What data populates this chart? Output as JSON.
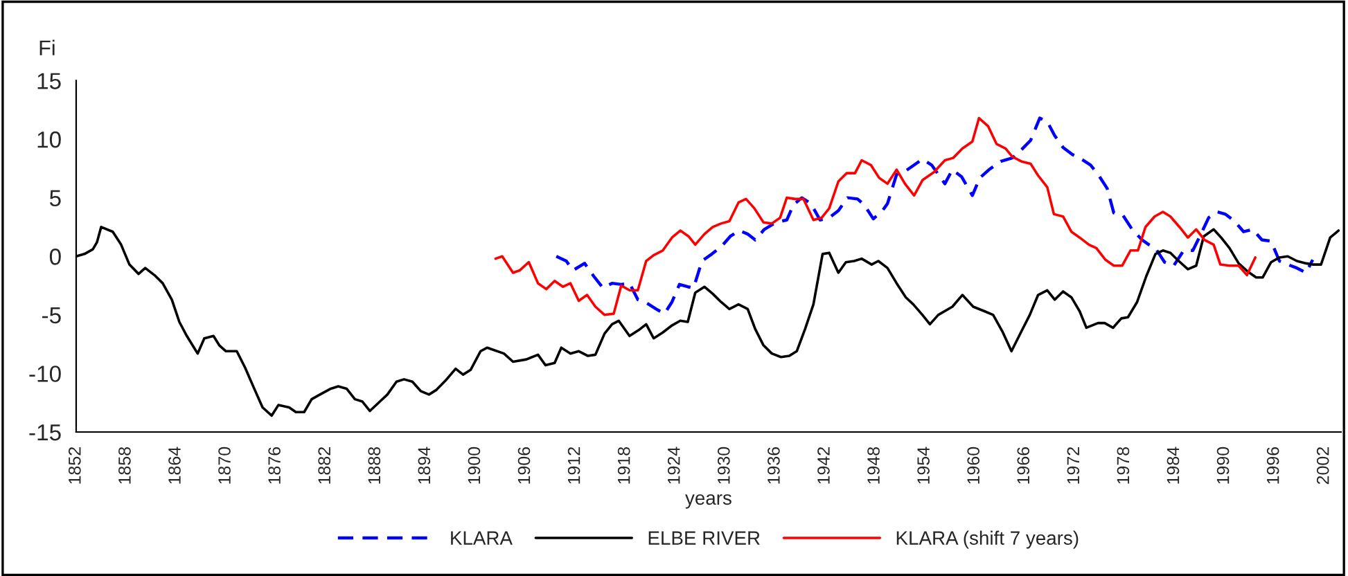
{
  "chart_data": {
    "type": "line",
    "xlabel": "years",
    "ylabel": "Fi",
    "xlim": [
      1852,
      2004
    ],
    "xticks": [
      1852,
      1858,
      1864,
      1870,
      1876,
      1882,
      1888,
      1894,
      1900,
      1906,
      1912,
      1918,
      1924,
      1930,
      1936,
      1942,
      1948,
      1954,
      1960,
      1966,
      1972,
      1978,
      1984,
      1990,
      1996,
      2002
    ],
    "ylim": [
      -15,
      15
    ],
    "yticks": [
      -15,
      -10,
      -5,
      0,
      5,
      10,
      15
    ],
    "grid": false,
    "legend": "bottom",
    "marker": "none",
    "series": [
      {
        "name": "KLARA",
        "color": "#0000ff",
        "line_style": "dashed",
        "x": [
          1909.7,
          1910.9,
          1911.7,
          1913.1,
          1914.2,
          1915.3,
          1916.4,
          1917.5,
          1918.5,
          1919.5,
          1920.6,
          1921.7,
          1922.7,
          1923.6,
          1924.5,
          1925.5,
          1926.2,
          1927.2,
          1928.4,
          1929.5,
          1930.6,
          1931.7,
          1932.7,
          1933.6,
          1934.7,
          1936.1,
          1937.4,
          1938.2,
          1939.2,
          1940.3,
          1941.4,
          1942.5,
          1943.6,
          1944.7,
          1945.9,
          1946.7,
          1947.8,
          1948.9,
          1949.5,
          1950.6,
          1951.7,
          1953.7,
          1954.8,
          1956.4,
          1957.3,
          1958.4,
          1959.7,
          1960.6,
          1961.7,
          1963.1,
          1964.5,
          1965.6,
          1966.7,
          1967.8,
          1968.7,
          1969.6,
          1970.6,
          1971.7,
          1972.8,
          1973.9,
          1974.8,
          1975.9,
          1976.7,
          1977.8,
          1978.9,
          1980.1,
          1980.9,
          1981.7,
          1982.8,
          1983.9,
          1985.1,
          1986.2,
          1987.3,
          1988.1,
          1989.1,
          1990.1,
          1991.2,
          1992.3,
          1993.4,
          1994.5,
          1995.6,
          1996.6,
          1997.6,
          1998.7,
          1999.8,
          2000.6
        ],
        "values": [
          0,
          -0.4,
          -1.2,
          -0.6,
          -1.7,
          -2.7,
          -2.3,
          -2.4,
          -2.3,
          -3.7,
          -4.0,
          -4.5,
          -4.9,
          -3.9,
          -2.4,
          -2.6,
          -2.7,
          -0.4,
          0.2,
          0.8,
          1.7,
          2.2,
          1.9,
          1.4,
          2.3,
          2.9,
          3.1,
          4.4,
          5.0,
          4.5,
          3.1,
          3.3,
          3.9,
          5.0,
          4.9,
          4.4,
          3.2,
          3.9,
          4.5,
          7.0,
          7.3,
          8.3,
          7.8,
          6.2,
          7.4,
          6.8,
          5.2,
          6.7,
          7.4,
          8.1,
          8.4,
          9.1,
          9.9,
          11.8,
          11.5,
          10.3,
          9.3,
          8.7,
          8.3,
          7.8,
          7.0,
          5.8,
          3.7,
          3.5,
          2.3,
          1.4,
          1.0,
          0.7,
          -0.5,
          -0.8,
          0.5,
          0.5,
          2.1,
          3.3,
          3.8,
          3.6,
          3.0,
          2.1,
          2.3,
          1.4,
          1.3,
          -0.4,
          -0.7,
          -1.0,
          -1.4,
          -0.3
        ]
      },
      {
        "name": "ELBE RIVER",
        "color": "#000000",
        "line_style": "solid",
        "x": [
          1852,
          1853,
          1854,
          1854.5,
          1855,
          1856.4,
          1857.4,
          1858.4,
          1859.5,
          1860.3,
          1861.4,
          1862.4,
          1863.5,
          1864.4,
          1865.3,
          1866.6,
          1867.4,
          1868.5,
          1869.2,
          1870,
          1871.3,
          1872.3,
          1873.4,
          1874.4,
          1875.5,
          1876.3,
          1877.6,
          1878.4,
          1879.4,
          1880.3,
          1881.3,
          1882.6,
          1883.5,
          1884.5,
          1885.5,
          1886.4,
          1887.3,
          1888.5,
          1889.4,
          1890.5,
          1891.4,
          1892.4,
          1893.4,
          1894.4,
          1895.3,
          1896.4,
          1897.6,
          1898.5,
          1899.4,
          1900.6,
          1901.4,
          1903.4,
          1904.5,
          1906.1,
          1907.5,
          1908.4,
          1909.5,
          1910.3,
          1911.4,
          1912.4,
          1913.5,
          1914.4,
          1915.5,
          1916.4,
          1917.2,
          1918.5,
          1919.6,
          1920.5,
          1921.4,
          1922.5,
          1923.6,
          1924.6,
          1925.5,
          1926.4,
          1927.5,
          1928.5,
          1929.5,
          1930.5,
          1931.6,
          1932.7,
          1933.6,
          1934.6,
          1935.6,
          1936.7,
          1937.7,
          1938.6,
          1939.6,
          1940.6,
          1941.7,
          1942.5,
          1943.6,
          1944.5,
          1945.5,
          1946.4,
          1947.6,
          1948.4,
          1949.5,
          1950.6,
          1951.7,
          1952.6,
          1953.7,
          1954.6,
          1955.6,
          1957.3,
          1958.5,
          1959.8,
          1961.2,
          1962.2,
          1963.3,
          1964.4,
          1965.6,
          1966.6,
          1967.6,
          1968.7,
          1969.6,
          1970.6,
          1971.6,
          1972.6,
          1973.4,
          1974.8,
          1975.6,
          1976.6,
          1977.6,
          1978.4,
          1979.5,
          1980.6,
          1981.7,
          1982.6,
          1983.5,
          1984.5,
          1985.6,
          1986.6,
          1987.5,
          1988.7,
          1989.6,
          1990.6,
          1991.7,
          1992.8,
          1993.8,
          1994.6,
          1995.6,
          1996.6,
          1997.6,
          1998.7,
          1999.8,
          2000.6,
          2001.6,
          2002.7,
          2003.7
        ],
        "values": [
          0,
          0.2,
          0.6,
          1.2,
          2.5,
          2.1,
          1.0,
          -0.7,
          -1.5,
          -1.0,
          -1.6,
          -2.3,
          -3.7,
          -5.6,
          -6.8,
          -8.3,
          -7.0,
          -6.8,
          -7.6,
          -8.1,
          -8.1,
          -9.5,
          -11.3,
          -12.9,
          -13.6,
          -12.7,
          -12.9,
          -13.3,
          -13.3,
          -12.2,
          -11.8,
          -11.3,
          -11.1,
          -11.3,
          -12.2,
          -12.4,
          -13.2,
          -12.4,
          -11.8,
          -10.7,
          -10.5,
          -10.7,
          -11.5,
          -11.8,
          -11.4,
          -10.6,
          -9.6,
          -10.1,
          -9.7,
          -8.1,
          -7.8,
          -8.3,
          -9.0,
          -8.8,
          -8.4,
          -9.3,
          -9.1,
          -7.8,
          -8.3,
          -8.1,
          -8.5,
          -8.4,
          -6.6,
          -5.8,
          -5.5,
          -6.8,
          -6.3,
          -5.8,
          -7.0,
          -6.5,
          -5.9,
          -5.5,
          -5.6,
          -3.1,
          -2.6,
          -3.2,
          -3.9,
          -4.5,
          -4.1,
          -4.5,
          -6.2,
          -7.6,
          -8.3,
          -8.6,
          -8.5,
          -8.1,
          -6.2,
          -4.1,
          0.2,
          0.3,
          -1.4,
          -0.5,
          -0.4,
          -0.2,
          -0.7,
          -0.4,
          -1.0,
          -2.3,
          -3.5,
          -4.1,
          -5.0,
          -5.8,
          -5.0,
          -4.3,
          -3.3,
          -4.3,
          -4.7,
          -5.0,
          -6.4,
          -8.1,
          -6.4,
          -5.0,
          -3.3,
          -2.9,
          -3.7,
          -3.0,
          -3.5,
          -4.7,
          -6.1,
          -5.7,
          -5.7,
          -6.1,
          -5.3,
          -5.2,
          -3.9,
          -1.7,
          0.2,
          0.5,
          0.3,
          -0.4,
          -1.1,
          -0.8,
          1.7,
          2.3,
          1.6,
          0.7,
          -0.6,
          -1.3,
          -1.8,
          -1.8,
          -0.5,
          -0.1,
          0,
          -0.4,
          -0.6,
          -0.7,
          -0.7,
          1.6,
          2.2
        ]
      },
      {
        "name": "KLARA (shift 7 years)",
        "color": "#ff0000",
        "line_style": "solid",
        "x": [
          1902.4,
          1903.2,
          1904.5,
          1905.3,
          1906.4,
          1907.5,
          1908.5,
          1909.5,
          1910.5,
          1911.4,
          1912.4,
          1913.4,
          1914.4,
          1915.5,
          1916.6,
          1917.5,
          1918.5,
          1919.5,
          1920.5,
          1921.4,
          1922.5,
          1923.6,
          1924.6,
          1925.6,
          1926.4,
          1927.5,
          1928.5,
          1929.5,
          1930.5,
          1931.6,
          1932.5,
          1933.5,
          1934.6,
          1935.6,
          1936.6,
          1937.4,
          1938.4,
          1939.4,
          1940.6,
          1941.6,
          1942.5,
          1943.6,
          1944.6,
          1945.6,
          1946.4,
          1947.5,
          1948.5,
          1949.5,
          1950.6,
          1951.6,
          1952.7,
          1953.7,
          1955.1,
          1956.4,
          1957.4,
          1958.5,
          1959.7,
          1960.5,
          1961.6,
          1962.6,
          1963.7,
          1964.5,
          1965.6,
          1966.7,
          1967.6,
          1968.7,
          1969.5,
          1970.6,
          1971.6,
          1972.6,
          1973.7,
          1974.6,
          1975.7,
          1976.7,
          1977.7,
          1978.7,
          1979.6,
          1980.5,
          1981.6,
          1982.6,
          1983.5,
          1984.6,
          1985.6,
          1986.6,
          1987.6,
          1988.7,
          1989.5,
          1990.6,
          1991.7,
          1992.7,
          1993.7
        ],
        "values": [
          -0.2,
          0,
          -1.4,
          -1.2,
          -0.5,
          -2.3,
          -2.8,
          -2.1,
          -2.6,
          -2.3,
          -3.8,
          -3.3,
          -4.3,
          -5.0,
          -4.9,
          -2.5,
          -2.9,
          -2.9,
          -0.4,
          0.1,
          0.5,
          1.6,
          2.2,
          1.7,
          1.0,
          1.9,
          2.5,
          2.8,
          3.0,
          4.6,
          4.9,
          4.1,
          2.9,
          2.8,
          3.3,
          5.0,
          4.9,
          4.9,
          3.1,
          3.3,
          4.1,
          6.4,
          7.1,
          7.1,
          8.2,
          7.8,
          6.7,
          6.2,
          7.4,
          6.2,
          5.2,
          6.5,
          7.2,
          8.2,
          8.4,
          9.2,
          9.8,
          11.8,
          11.1,
          9.6,
          9.2,
          8.5,
          8.1,
          7.9,
          6.9,
          5.9,
          3.6,
          3.4,
          2.1,
          1.6,
          1.0,
          0.7,
          -0.3,
          -0.8,
          -0.8,
          0.5,
          0.5,
          2.5,
          3.4,
          3.8,
          3.4,
          2.5,
          1.6,
          2.3,
          1.4,
          1.0,
          -0.7,
          -0.8,
          -0.8,
          -1.6,
          -0.1
        ]
      }
    ]
  }
}
